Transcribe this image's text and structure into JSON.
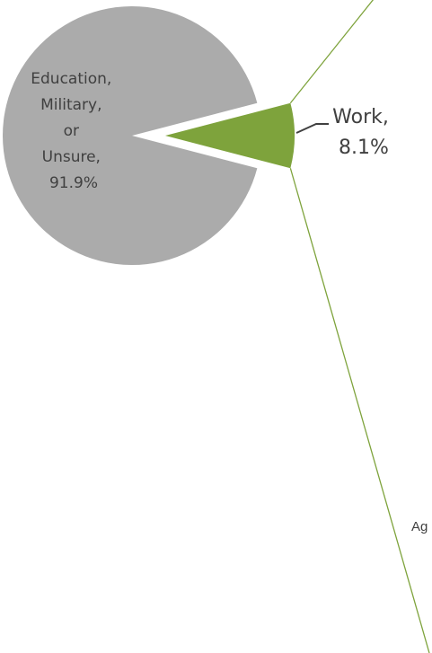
{
  "chart_data": {
    "type": "pie",
    "slices": [
      {
        "label_lines": [
          "Education,",
          "Military,",
          "or",
          "Unsure,"
        ],
        "value_label": "91.9%",
        "value": 91.9,
        "color": "#ababab"
      },
      {
        "label_lines": [
          "Work,"
        ],
        "value_label": "8.1%",
        "value": 8.1,
        "color": "#7ea33c"
      }
    ],
    "annotations": [
      "Ag"
    ],
    "connector_color": "#7ea33c",
    "leader_color": "#404040",
    "legend": "none"
  }
}
